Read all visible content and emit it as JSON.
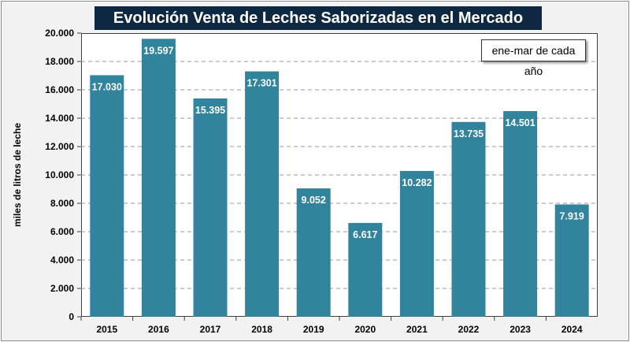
{
  "chart_data": {
    "type": "bar",
    "title": "Evolución Venta de Leches Saborizadas en el Mercado Interno",
    "annotation": "ene-mar de cada año",
    "xlabel": "",
    "ylabel": "miles de litros de leche",
    "categories": [
      "2015",
      "2016",
      "2017",
      "2018",
      "2019",
      "2020",
      "2021",
      "2022",
      "2023",
      "2024"
    ],
    "values": [
      17030,
      19597,
      15395,
      17301,
      9052,
      6617,
      10282,
      13735,
      14501,
      7919
    ],
    "data_labels": [
      "17.030",
      "19.597",
      "15.395",
      "17.301",
      "9.052",
      "6.617",
      "10.282",
      "13.735",
      "14.501",
      "7.919"
    ],
    "ylim": [
      0,
      20000
    ],
    "yticks": [
      "0",
      "2.000",
      "4.000",
      "6.000",
      "8.000",
      "10.000",
      "12.000",
      "14.000",
      "16.000",
      "18.000",
      "20.000"
    ],
    "grid": true,
    "bar_color": "#31849b",
    "title_bg": "#0e2841"
  }
}
